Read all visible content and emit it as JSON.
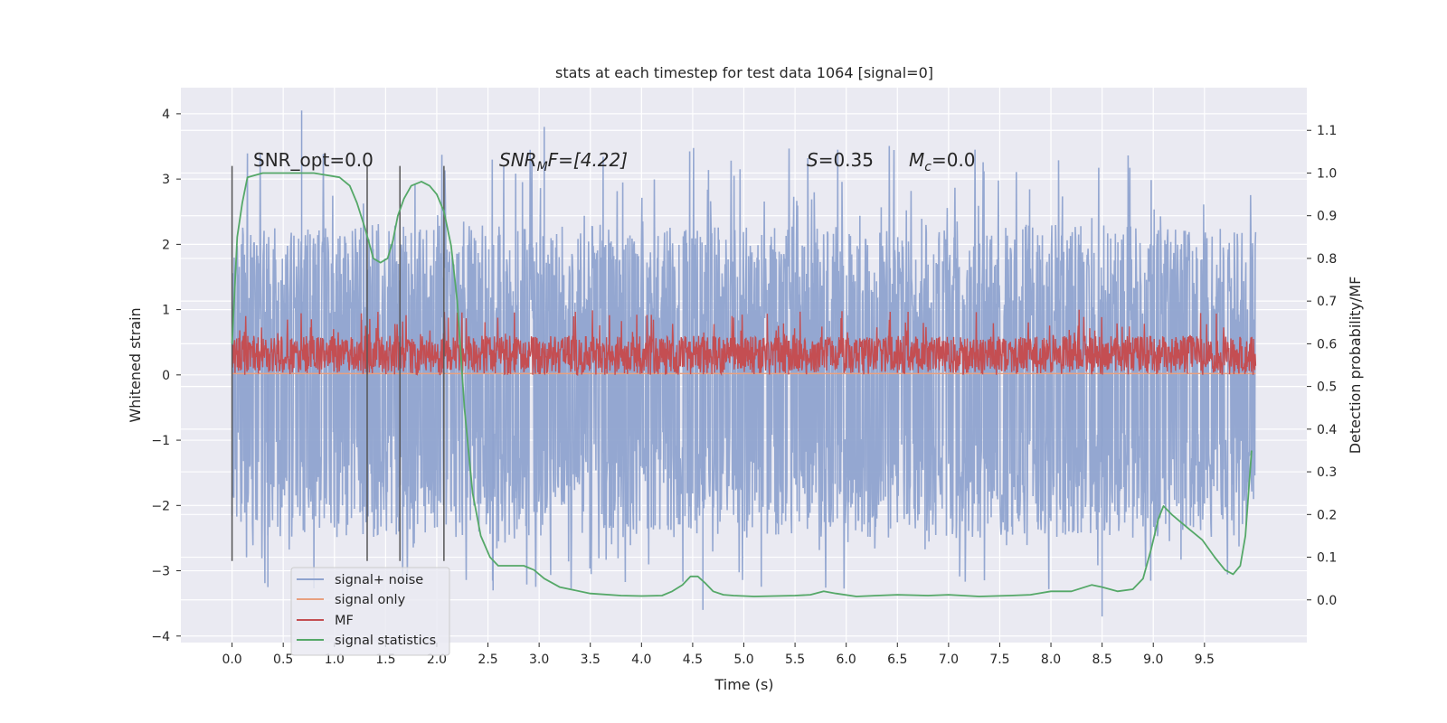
{
  "chart_data": {
    "type": "line",
    "title": "stats at each timestep for test data 1064 [signal=0]",
    "xlabel": "Time (s)",
    "ylabel": "Whitened strain",
    "y2label": "Detection probability/MF",
    "xlim": [
      -0.5,
      10.5
    ],
    "ylim": [
      -4.1,
      4.4
    ],
    "y2lim": [
      -0.1,
      1.2
    ],
    "xticks": [
      "0.0",
      "0.5",
      "1.0",
      "1.5",
      "2.0",
      "2.5",
      "3.0",
      "3.5",
      "4.0",
      "4.5",
      "5.0",
      "5.5",
      "6.0",
      "6.5",
      "7.0",
      "7.5",
      "8.0",
      "8.5",
      "9.0",
      "9.5"
    ],
    "yticks": [
      "4",
      "3",
      "2",
      "1",
      "0",
      "−1",
      "−2",
      "−3",
      "−4"
    ],
    "y2ticks": [
      "1.1",
      "1.0",
      "0.9",
      "0.8",
      "0.7",
      "0.6",
      "0.5",
      "0.4",
      "0.3",
      "0.2",
      "0.1",
      "0.0"
    ],
    "grid": true,
    "legend_position": "lower-left",
    "colors": {
      "noise": "#8fa3cf",
      "signal_only": "#e8a07f",
      "mf": "#c44e52",
      "stats": "#55a868",
      "plot_bg": "#eaeaf2",
      "grid": "#ffffff"
    },
    "annotations": {
      "snr_opt": "SNR_opt=0.0",
      "snr_mf_label": "SNR",
      "snr_mf_sub": "M",
      "snr_mf_rest": "F=[4.22]",
      "s_label": "S",
      "s_value": "=0.35",
      "mc_label": "M",
      "mc_sub": "c",
      "mc_value": "=0.0"
    },
    "vlines_x": [
      0.0,
      1.32,
      1.64,
      2.07
    ],
    "series": [
      {
        "name": "signal+ noise",
        "noise_range": {
          "x_start": 0.0,
          "x_end": 10.0,
          "typical_min": -2.5,
          "typical_max": 2.3,
          "extreme_min": -3.7,
          "extreme_max": 4.05
        }
      },
      {
        "name": "signal only",
        "x": [
          0.0,
          10.0
        ],
        "y": [
          0.02,
          0.02
        ]
      },
      {
        "name": "MF",
        "noise_range": {
          "x_start": 0.0,
          "x_end": 10.0,
          "typical_min": 0.0,
          "typical_max": 0.6,
          "extreme_max": 1.0
        }
      },
      {
        "name": "signal statistics",
        "axis": "right",
        "x": [
          0.0,
          0.05,
          0.1,
          0.15,
          0.3,
          0.5,
          0.8,
          1.05,
          1.15,
          1.22,
          1.3,
          1.38,
          1.45,
          1.52,
          1.57,
          1.62,
          1.68,
          1.75,
          1.85,
          1.93,
          2.0,
          2.07,
          2.14,
          2.2,
          2.27,
          2.35,
          2.43,
          2.52,
          2.6,
          2.72,
          2.85,
          2.95,
          3.05,
          3.2,
          3.5,
          3.8,
          4.0,
          4.2,
          4.3,
          4.4,
          4.48,
          4.55,
          4.62,
          4.7,
          4.8,
          4.9,
          5.1,
          5.3,
          5.5,
          5.65,
          5.78,
          5.9,
          6.1,
          6.3,
          6.5,
          6.8,
          7.0,
          7.3,
          7.6,
          7.8,
          8.0,
          8.2,
          8.4,
          8.5,
          8.65,
          8.8,
          8.9,
          8.98,
          9.05,
          9.1,
          9.18,
          9.28,
          9.38,
          9.48,
          9.6,
          9.7,
          9.78,
          9.85,
          9.9,
          9.96
        ],
        "y": [
          0.6,
          0.85,
          0.93,
          0.99,
          1.0,
          1.0,
          1.0,
          0.99,
          0.97,
          0.93,
          0.87,
          0.8,
          0.79,
          0.8,
          0.84,
          0.9,
          0.94,
          0.97,
          0.98,
          0.97,
          0.95,
          0.91,
          0.83,
          0.7,
          0.45,
          0.25,
          0.15,
          0.1,
          0.08,
          0.08,
          0.08,
          0.07,
          0.05,
          0.03,
          0.015,
          0.01,
          0.009,
          0.01,
          0.02,
          0.035,
          0.055,
          0.055,
          0.04,
          0.02,
          0.012,
          0.01,
          0.008,
          0.009,
          0.01,
          0.012,
          0.02,
          0.015,
          0.008,
          0.01,
          0.012,
          0.01,
          0.012,
          0.008,
          0.01,
          0.012,
          0.02,
          0.02,
          0.035,
          0.03,
          0.02,
          0.025,
          0.05,
          0.12,
          0.19,
          0.22,
          0.2,
          0.18,
          0.16,
          0.14,
          0.1,
          0.07,
          0.06,
          0.08,
          0.15,
          0.35
        ]
      }
    ]
  }
}
